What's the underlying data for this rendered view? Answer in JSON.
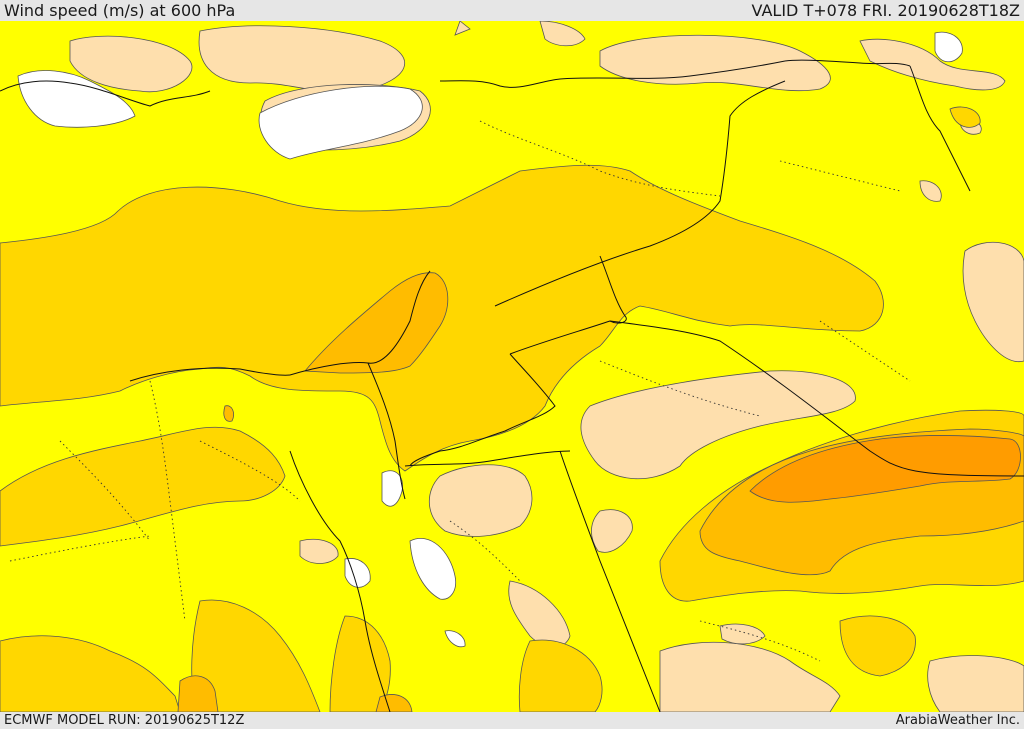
{
  "header": {
    "title": "Wind speed (m/s) at 600 hPa",
    "valid": "VALID T+078 FRI. 20190628T18Z"
  },
  "footer": {
    "model_run": "ECMWF MODEL RUN: 20190625T12Z",
    "credit": "ArabiaWeather Inc."
  },
  "colors": {
    "level_0": "#ffffff",
    "level_1": "#fedfad",
    "level_2": "#ffff00",
    "level_3": "#ffd700",
    "level_4": "#ffbc00",
    "level_5": "#ff9c00",
    "contour": "#555555",
    "border": "#111111"
  }
}
